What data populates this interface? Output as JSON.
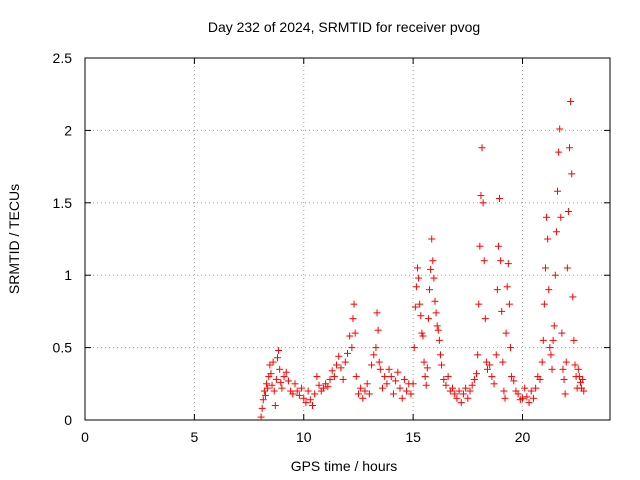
{
  "chart_data": {
    "type": "scatter",
    "title": "Day 232 of 2024, SRMTID for receiver pvog",
    "xlabel": "GPS time / hours",
    "ylabel": "SRMTID / TECUs",
    "xlim": [
      0,
      24
    ],
    "ylim": [
      0,
      2.5
    ],
    "xticks": [
      0,
      5,
      10,
      15,
      20
    ],
    "yticks": [
      0,
      0.5,
      1,
      1.5,
      2,
      2.5
    ],
    "xtick_labels": [
      "0",
      "5",
      "10",
      "15",
      "20"
    ],
    "ytick_labels": [
      "0",
      "0.5",
      "1",
      "1.5",
      "2",
      "2.5"
    ],
    "grid": true,
    "marker": "+",
    "color": "#ff0000",
    "series": [
      {
        "name": "SRMTID",
        "points": [
          [
            8.05,
            0.02
          ],
          [
            8.1,
            0.08
          ],
          [
            8.15,
            0.14
          ],
          [
            8.2,
            0.2
          ],
          [
            8.25,
            0.17
          ],
          [
            8.3,
            0.25
          ],
          [
            8.35,
            0.22
          ],
          [
            8.4,
            0.3
          ],
          [
            8.45,
            0.38
          ],
          [
            8.5,
            0.32
          ],
          [
            8.55,
            0.24
          ],
          [
            8.6,
            0.4
          ],
          [
            8.65,
            0.2
          ],
          [
            8.7,
            0.1
          ],
          [
            8.75,
            0.28
          ],
          [
            8.8,
            0.43
          ],
          [
            8.85,
            0.48
          ],
          [
            8.9,
            0.35
          ],
          [
            8.95,
            0.26
          ],
          [
            9.0,
            0.22
          ],
          [
            9.1,
            0.3
          ],
          [
            9.2,
            0.33
          ],
          [
            9.3,
            0.27
          ],
          [
            9.4,
            0.2
          ],
          [
            9.5,
            0.18
          ],
          [
            9.6,
            0.25
          ],
          [
            9.7,
            0.2
          ],
          [
            9.8,
            0.17
          ],
          [
            9.9,
            0.22
          ],
          [
            10.0,
            0.15
          ],
          [
            10.1,
            0.12
          ],
          [
            10.2,
            0.2
          ],
          [
            10.3,
            0.14
          ],
          [
            10.4,
            0.1
          ],
          [
            10.5,
            0.18
          ],
          [
            10.6,
            0.3
          ],
          [
            10.7,
            0.24
          ],
          [
            10.8,
            0.2
          ],
          [
            10.9,
            0.22
          ],
          [
            11.0,
            0.25
          ],
          [
            11.1,
            0.23
          ],
          [
            11.2,
            0.28
          ],
          [
            11.3,
            0.34
          ],
          [
            11.4,
            0.3
          ],
          [
            11.5,
            0.38
          ],
          [
            11.6,
            0.44
          ],
          [
            11.7,
            0.36
          ],
          [
            11.8,
            0.28
          ],
          [
            11.9,
            0.4
          ],
          [
            12.0,
            0.46
          ],
          [
            12.1,
            0.58
          ],
          [
            12.2,
            0.5
          ],
          [
            12.25,
            0.7
          ],
          [
            12.3,
            0.8
          ],
          [
            12.35,
            0.6
          ],
          [
            12.4,
            0.3
          ],
          [
            12.5,
            0.18
          ],
          [
            12.6,
            0.22
          ],
          [
            12.7,
            0.15
          ],
          [
            12.8,
            0.2
          ],
          [
            12.9,
            0.25
          ],
          [
            13.0,
            0.18
          ],
          [
            13.1,
            0.38
          ],
          [
            13.2,
            0.45
          ],
          [
            13.3,
            0.5
          ],
          [
            13.35,
            0.74
          ],
          [
            13.4,
            0.62
          ],
          [
            13.45,
            0.4
          ],
          [
            13.5,
            0.35
          ],
          [
            13.6,
            0.22
          ],
          [
            13.7,
            0.3
          ],
          [
            13.8,
            0.25
          ],
          [
            13.9,
            0.35
          ],
          [
            14.0,
            0.3
          ],
          [
            14.1,
            0.18
          ],
          [
            14.2,
            0.27
          ],
          [
            14.3,
            0.33
          ],
          [
            14.4,
            0.22
          ],
          [
            14.5,
            0.15
          ],
          [
            14.6,
            0.28
          ],
          [
            14.7,
            0.2
          ],
          [
            14.8,
            0.25
          ],
          [
            14.9,
            0.18
          ],
          [
            15.0,
            0.25
          ],
          [
            15.05,
            0.5
          ],
          [
            15.1,
            0.78
          ],
          [
            15.15,
            0.92
          ],
          [
            15.2,
            1.05
          ],
          [
            15.25,
            0.98
          ],
          [
            15.3,
            0.8
          ],
          [
            15.35,
            0.72
          ],
          [
            15.4,
            0.6
          ],
          [
            15.45,
            0.58
          ],
          [
            15.5,
            0.4
          ],
          [
            15.55,
            0.3
          ],
          [
            15.6,
            0.24
          ],
          [
            15.65,
            0.36
          ],
          [
            15.7,
            0.7
          ],
          [
            15.75,
            0.9
          ],
          [
            15.8,
            1.04
          ],
          [
            15.85,
            1.25
          ],
          [
            15.9,
            1.1
          ],
          [
            15.95,
            0.98
          ],
          [
            16.0,
            0.82
          ],
          [
            16.05,
            0.74
          ],
          [
            16.1,
            0.65
          ],
          [
            16.15,
            0.62
          ],
          [
            16.2,
            0.55
          ],
          [
            16.25,
            0.45
          ],
          [
            16.3,
            0.38
          ],
          [
            16.4,
            0.28
          ],
          [
            16.5,
            0.24
          ],
          [
            16.6,
            0.3
          ],
          [
            16.7,
            0.2
          ],
          [
            16.8,
            0.22
          ],
          [
            16.9,
            0.18
          ],
          [
            17.0,
            0.15
          ],
          [
            17.1,
            0.2
          ],
          [
            17.2,
            0.12
          ],
          [
            17.3,
            0.18
          ],
          [
            17.4,
            0.22
          ],
          [
            17.5,
            0.15
          ],
          [
            17.6,
            0.2
          ],
          [
            17.7,
            0.24
          ],
          [
            17.8,
            0.28
          ],
          [
            17.9,
            0.32
          ],
          [
            17.95,
            0.45
          ],
          [
            18.0,
            0.8
          ],
          [
            18.05,
            1.2
          ],
          [
            18.1,
            1.55
          ],
          [
            18.15,
            1.88
          ],
          [
            18.2,
            1.5
          ],
          [
            18.25,
            1.1
          ],
          [
            18.3,
            0.7
          ],
          [
            18.35,
            0.4
          ],
          [
            18.4,
            0.35
          ],
          [
            18.5,
            0.38
          ],
          [
            18.6,
            0.3
          ],
          [
            18.7,
            0.25
          ],
          [
            18.8,
            0.45
          ],
          [
            18.85,
            0.9
          ],
          [
            18.9,
            1.2
          ],
          [
            18.95,
            1.53
          ],
          [
            19.0,
            1.1
          ],
          [
            19.05,
            0.75
          ],
          [
            19.1,
            0.4
          ],
          [
            19.15,
            0.2
          ],
          [
            19.2,
            0.15
          ],
          [
            19.25,
            0.6
          ],
          [
            19.3,
            0.92
          ],
          [
            19.35,
            1.08
          ],
          [
            19.4,
            0.8
          ],
          [
            19.45,
            0.5
          ],
          [
            19.5,
            0.3
          ],
          [
            19.6,
            0.27
          ],
          [
            19.7,
            0.2
          ],
          [
            19.8,
            0.18
          ],
          [
            19.9,
            0.14
          ],
          [
            20.0,
            0.15
          ],
          [
            20.1,
            0.22
          ],
          [
            20.2,
            0.16
          ],
          [
            20.3,
            0.12
          ],
          [
            20.4,
            0.2
          ],
          [
            20.5,
            0.15
          ],
          [
            20.6,
            0.22
          ],
          [
            20.7,
            0.3
          ],
          [
            20.8,
            0.28
          ],
          [
            20.9,
            0.4
          ],
          [
            20.95,
            0.55
          ],
          [
            21.0,
            0.8
          ],
          [
            21.05,
            1.05
          ],
          [
            21.1,
            1.4
          ],
          [
            21.15,
            1.25
          ],
          [
            21.2,
            0.9
          ],
          [
            21.25,
            0.5
          ],
          [
            21.3,
            0.45
          ],
          [
            21.35,
            0.35
          ],
          [
            21.4,
            0.55
          ],
          [
            21.45,
            0.65
          ],
          [
            21.5,
            1.0
          ],
          [
            21.55,
            1.3
          ],
          [
            21.6,
            1.58
          ],
          [
            21.65,
            1.85
          ],
          [
            21.7,
            2.01
          ],
          [
            21.75,
            1.4
          ],
          [
            21.8,
            0.6
          ],
          [
            21.85,
            0.35
          ],
          [
            21.9,
            0.28
          ],
          [
            21.95,
            0.18
          ],
          [
            22.0,
            0.4
          ],
          [
            22.05,
            1.05
          ],
          [
            22.1,
            1.44
          ],
          [
            22.15,
            1.88
          ],
          [
            22.2,
            2.2
          ],
          [
            22.25,
            1.7
          ],
          [
            22.3,
            0.85
          ],
          [
            22.35,
            0.55
          ],
          [
            22.4,
            0.38
          ],
          [
            22.45,
            0.3
          ],
          [
            22.5,
            0.22
          ],
          [
            22.55,
            0.35
          ],
          [
            22.6,
            0.3
          ],
          [
            22.65,
            0.26
          ],
          [
            22.7,
            0.22
          ],
          [
            22.75,
            0.28
          ],
          [
            22.8,
            0.2
          ]
        ]
      }
    ]
  }
}
